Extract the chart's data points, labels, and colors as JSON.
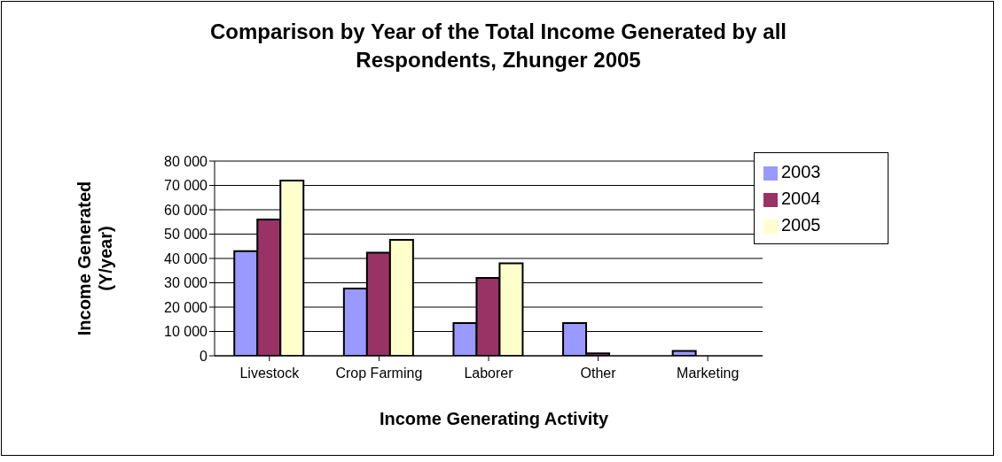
{
  "chart_data": {
    "type": "bar",
    "title": "Comparison by Year of the Total Income Generated by all Respondents, Zhunger 2005",
    "xlabel": "Income Generating Activity",
    "ylabel": "Income Generated (Y/year)",
    "categories": [
      "Livestock",
      "Crop Farming",
      "Laborer",
      "Other",
      "Marketing"
    ],
    "series": [
      {
        "name": "2003",
        "color": "#9999ff",
        "values": [
          43000,
          27600,
          13500,
          13500,
          2000
        ]
      },
      {
        "name": "2004",
        "color": "#993366",
        "values": [
          56000,
          42400,
          32000,
          1000,
          0
        ]
      },
      {
        "name": "2005",
        "color": "#ffffcc",
        "values": [
          72000,
          47600,
          38000,
          0,
          0
        ]
      }
    ],
    "ylim": [
      0,
      80000
    ],
    "yticks": [
      {
        "value": 0,
        "label": "0"
      },
      {
        "value": 10000,
        "label": "10 000"
      },
      {
        "value": 20000,
        "label": "20 000"
      },
      {
        "value": 30000,
        "label": "30 000"
      },
      {
        "value": 40000,
        "label": "40 000"
      },
      {
        "value": 50000,
        "label": "50 000"
      },
      {
        "value": 60000,
        "label": "60 000"
      },
      {
        "value": 70000,
        "label": "70 000"
      },
      {
        "value": 80000,
        "label": "80 000"
      }
    ],
    "grid": "y",
    "legend": "top right"
  }
}
